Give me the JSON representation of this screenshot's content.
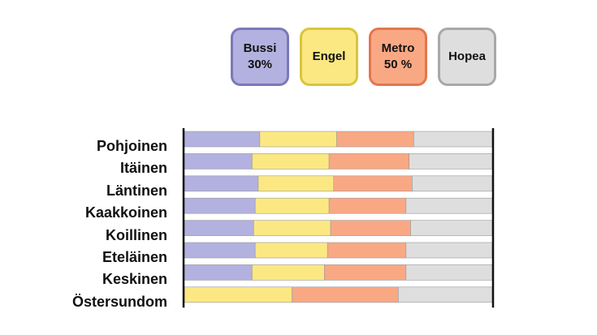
{
  "chart_data": {
    "type": "bar",
    "orientation": "horizontal",
    "stacked": true,
    "normalized": true,
    "xlim": [
      0,
      100
    ],
    "legend_placement": "top",
    "grid": false,
    "categories": [
      "Pohjoinen",
      "Itäinen",
      "Läntinen",
      "Kaakkoinen",
      "Koillinen",
      "Eteläinen",
      "Keskinen",
      "Östersundom"
    ],
    "series": [
      {
        "name": "Bussi",
        "legend_sub": "30%",
        "color": "#b3b1e0",
        "border": "#7b78b8",
        "values": [
          24.5,
          22,
          24,
          23,
          22.5,
          23,
          22,
          0
        ]
      },
      {
        "name": "Engel",
        "legend_sub": "",
        "color": "#fbe883",
        "border": "#d9c53c",
        "values": [
          25,
          25,
          24.5,
          24,
          25,
          23.5,
          23.5,
          35
        ]
      },
      {
        "name": "Metro",
        "legend_sub": "50 %",
        "color": "#f9a884",
        "border": "#e2774e",
        "values": [
          25,
          26,
          25.5,
          25,
          26,
          25.5,
          26.5,
          34.5
        ]
      },
      {
        "name": "Hopea",
        "legend_sub": "",
        "color": "#dedede",
        "border": "#a8a8a8",
        "values": [
          25.5,
          27,
          26,
          28,
          26.5,
          28,
          28,
          30.5
        ]
      }
    ]
  }
}
